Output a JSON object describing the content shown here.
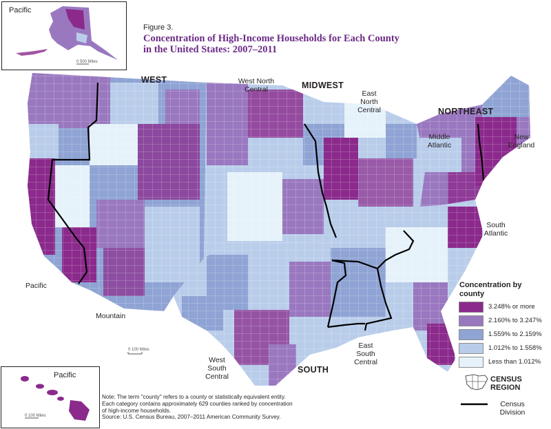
{
  "figure_label": "Figure 3.",
  "title_line1": "Concentration of High-Income Households for Each County",
  "title_line2": "in the United States: 2007–2011",
  "insets": {
    "alaska_label": "Pacific",
    "alaska_scale": "0    500 Miles",
    "hawaii_label": "Pacific",
    "hawaii_scale": "0    100 Miles",
    "main_scale": "0    100 Miles"
  },
  "regions": {
    "west": "WEST",
    "midwest": "MIDWEST",
    "northeast": "NORTHEAST",
    "south": "SOUTH"
  },
  "divisions": {
    "west_north_central": "West North Central",
    "east_north_central": "East North Central",
    "middle_atlantic": "Middle Atlantic",
    "new_england": "New England",
    "south_atlantic": "South Atlantic",
    "pacific": "Pacific",
    "mountain": "Mountain",
    "west_south_central": "West South Central",
    "east_south_central": "East South Central"
  },
  "legend": {
    "title": "Concentration by county",
    "items": [
      {
        "label": "3.248% or more",
        "color": "#8b2a8c"
      },
      {
        "label": "2.160% to 3.247%",
        "color": "#9a78c0"
      },
      {
        "label": "1.559% to 2.159%",
        "color": "#8fa4d4"
      },
      {
        "label": "1.012% to 1.558%",
        "color": "#b9cdea"
      },
      {
        "label": "Less than 1.012%",
        "color": "#e6f2fa"
      }
    ],
    "census_region": "CENSUS REGION",
    "census_division": "Census Division"
  },
  "note": {
    "line1": "Note: The term \"county\" refers to a county or statistically equivalent entity.",
    "line2": "Each category contains approximately 629 counties ranked by concentration",
    "line3": "of high-income households.",
    "source": "Source: U.S. Census Bureau, 2007–2011 American Community Survey."
  }
}
